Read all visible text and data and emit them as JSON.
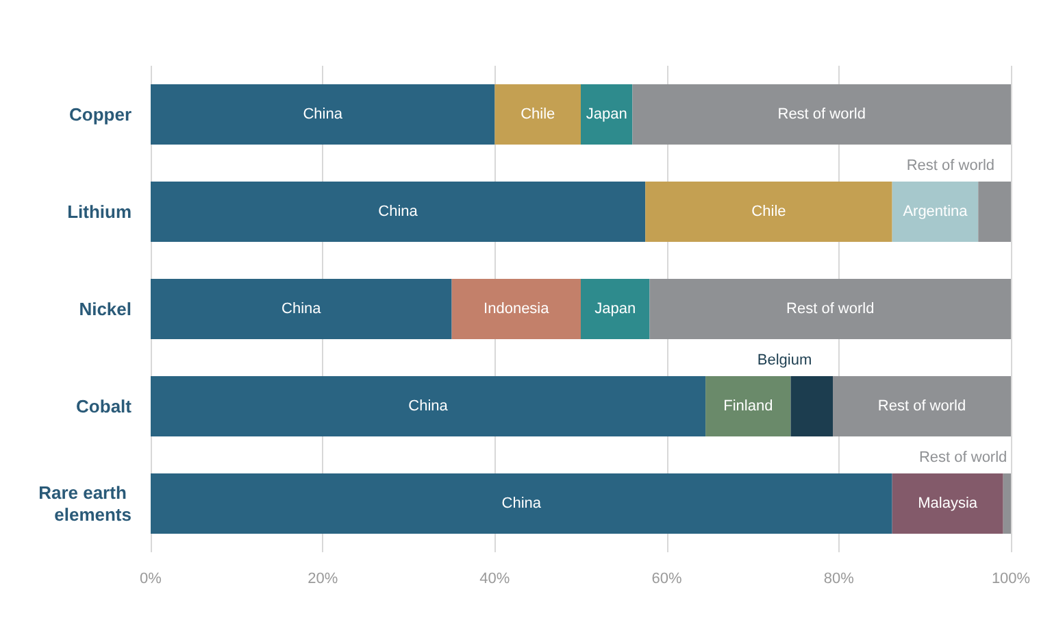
{
  "chart_data": {
    "type": "bar",
    "orientation": "horizontal",
    "stacked": true,
    "categories": [
      "Copper",
      "Lithium",
      "Nickel",
      "Cobalt",
      "Rare earth elements"
    ],
    "series": [
      {
        "name": "China",
        "color": "#2a6482",
        "values": [
          40,
          57.5,
          35,
          64.5,
          86.2
        ]
      },
      {
        "name": "Chile",
        "color": "#c4a052",
        "values": [
          10,
          28.7,
          null,
          null,
          null
        ]
      },
      {
        "name": "Argentina",
        "color": "#a6c8cc",
        "values": [
          null,
          10,
          null,
          null,
          null
        ]
      },
      {
        "name": "Indonesia",
        "color": "#c3806a",
        "values": [
          null,
          null,
          15,
          null,
          null
        ]
      },
      {
        "name": "Finland",
        "color": "#6a8a6a",
        "values": [
          null,
          null,
          null,
          9.9,
          null
        ]
      },
      {
        "name": "Belgium",
        "color": "#1c3d4f",
        "values": [
          null,
          null,
          null,
          4.9,
          null
        ]
      },
      {
        "name": "Malaysia",
        "color": "#835a6a",
        "values": [
          null,
          null,
          null,
          null,
          12.9
        ]
      },
      {
        "name": "Japan",
        "color": "#2e8b8d",
        "values": [
          6,
          null,
          8,
          null,
          null
        ]
      },
      {
        "name": "Rest of world",
        "color": "#8f9194",
        "values": [
          44,
          3.8,
          42,
          20.7,
          0.9
        ]
      }
    ],
    "xlim": [
      0,
      100
    ],
    "xticks": [
      {
        "value": 0,
        "label": "0%"
      },
      {
        "value": 20,
        "label": "20%"
      },
      {
        "value": 40,
        "label": "40%"
      },
      {
        "value": 60,
        "label": "60%"
      },
      {
        "value": 80,
        "label": "80%"
      },
      {
        "value": 100,
        "label": "100%"
      }
    ],
    "grid": "x",
    "legend": false
  }
}
